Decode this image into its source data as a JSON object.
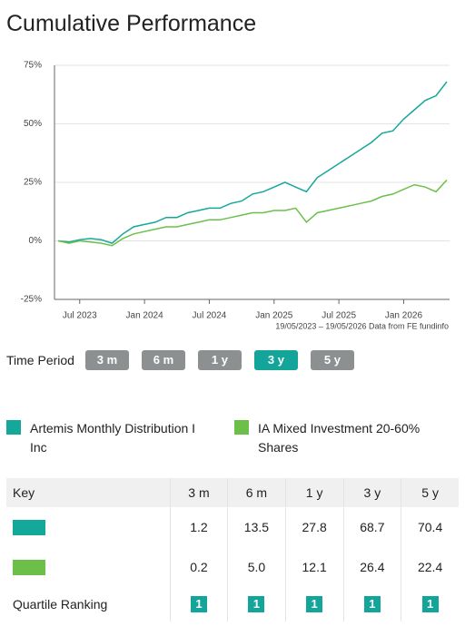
{
  "header": {
    "title": "Cumulative Performance"
  },
  "chart_data": {
    "type": "line",
    "note": "19/05/2023 – 19/05/2026 Data from FE fundinfo",
    "x": [
      "2023-05",
      "2023-06",
      "2023-07",
      "2023-08",
      "2023-09",
      "2023-10",
      "2023-11",
      "2023-12",
      "2024-01",
      "2024-02",
      "2024-03",
      "2024-04",
      "2024-05",
      "2024-06",
      "2024-07",
      "2024-08",
      "2024-09",
      "2024-10",
      "2024-11",
      "2024-12",
      "2025-01",
      "2025-02",
      "2025-03",
      "2025-04",
      "2025-05",
      "2025-06",
      "2025-07",
      "2025-08",
      "2025-09",
      "2025-10",
      "2025-11",
      "2025-12",
      "2026-01",
      "2026-02",
      "2026-03",
      "2026-04",
      "2026-05"
    ],
    "series": [
      {
        "name": "Artemis Monthly Distribution I Inc",
        "color": "#14a89a",
        "values": [
          0,
          -0.5,
          0.5,
          1,
          0.5,
          -1,
          3,
          6,
          7,
          8,
          10,
          10,
          12,
          13,
          14,
          14,
          16,
          17,
          20,
          21,
          23,
          25,
          23,
          21,
          27,
          30,
          33,
          36,
          39,
          42,
          46,
          47,
          52,
          56,
          60,
          62,
          68
        ]
      },
      {
        "name": "IA Mixed Investment 20-60% Shares",
        "color": "#6cc04a",
        "values": [
          0,
          -1,
          0,
          -0.5,
          -1,
          -2,
          1,
          3,
          4,
          5,
          6,
          6,
          7,
          8,
          9,
          9,
          10,
          11,
          12,
          12,
          13,
          13,
          14,
          8,
          12,
          13,
          14,
          15,
          16,
          17,
          19,
          20,
          22,
          24,
          23,
          21,
          26
        ]
      }
    ],
    "xlim": [
      "2023-05",
      "2026-05"
    ],
    "xticks": [
      {
        "value": "2023-07",
        "label": "Jul 2023"
      },
      {
        "value": "2024-01",
        "label": "Jan 2024"
      },
      {
        "value": "2024-07",
        "label": "Jul 2024"
      },
      {
        "value": "2025-01",
        "label": "Jan 2025"
      },
      {
        "value": "2025-07",
        "label": "Jul 2025"
      },
      {
        "value": "2026-01",
        "label": "Jan 2026"
      }
    ],
    "ylim": [
      -25,
      75
    ],
    "yticks": [
      {
        "value": -25,
        "label": "-25%"
      },
      {
        "value": 0,
        "label": "0%"
      },
      {
        "value": 25,
        "label": "25%"
      },
      {
        "value": 50,
        "label": "50%"
      },
      {
        "value": 75,
        "label": "75%"
      }
    ],
    "grid": true
  },
  "time_period": {
    "label": "Time Period",
    "options": [
      "3 m",
      "6 m",
      "1 y",
      "3 y",
      "5 y"
    ],
    "selected": 3
  },
  "table": {
    "columns": [
      "Key",
      "3 m",
      "6 m",
      "1 y",
      "3 y",
      "5 y"
    ],
    "rows": [
      [
        "1.2",
        "13.5",
        "27.8",
        "68.7",
        "70.4"
      ],
      [
        "0.2",
        "5.0",
        "12.1",
        "26.4",
        "22.4"
      ]
    ],
    "ranking": {
      "label": "Quartile Ranking",
      "values": [
        "1",
        "1",
        "1",
        "1",
        "1"
      ]
    }
  }
}
